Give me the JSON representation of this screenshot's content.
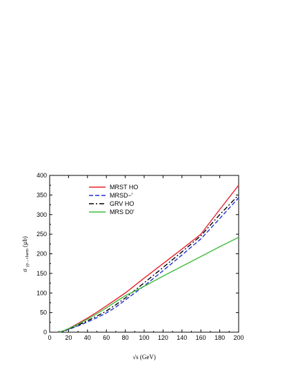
{
  "chart_data": {
    "type": "line",
    "xlabel": "√s (GeV)",
    "ylabel": "σγp→c c̄bar (µb)",
    "ylabel_main": "σ",
    "ylabel_sub": "γp→charm",
    "ylabel_unit": " (µb)",
    "xlim": [
      0,
      200
    ],
    "ylim": [
      0,
      400
    ],
    "xticks": [
      0,
      20,
      40,
      60,
      80,
      100,
      120,
      140,
      160,
      180,
      200
    ],
    "yticks": [
      0,
      50,
      100,
      150,
      200,
      250,
      300,
      350,
      400
    ],
    "legend_position": "top-left",
    "grid": false,
    "series": [
      {
        "name": "MRST HO",
        "color": "#e8202a",
        "dash": "solid",
        "x": [
          10,
          15,
          20,
          30,
          40,
          50,
          60,
          80,
          100,
          120,
          140,
          160,
          180,
          200
        ],
        "y": [
          0,
          4,
          9,
          22,
          36,
          51,
          67,
          100,
          138,
          175,
          212,
          250,
          313,
          375
        ]
      },
      {
        "name": "MRSD−'",
        "color": "#1f2fd6",
        "dash": "dashed",
        "x": [
          10,
          15,
          20,
          30,
          40,
          50,
          60,
          70,
          80,
          100,
          120,
          140,
          160,
          180,
          200
        ],
        "y": [
          0,
          3,
          7,
          16,
          26,
          37,
          49,
          64,
          82,
          118,
          157,
          197,
          238,
          290,
          343
        ]
      },
      {
        "name": "GRV HO",
        "color": "#000000",
        "dash": "dashdot",
        "x": [
          10,
          15,
          20,
          30,
          40,
          50,
          60,
          70,
          80,
          100,
          120,
          140,
          160,
          180,
          200
        ],
        "y": [
          0,
          3,
          8,
          18,
          29,
          41,
          54,
          70,
          87,
          126,
          165,
          205,
          246,
          300,
          350
        ]
      },
      {
        "name": "MRS D0'",
        "color": "#3dbb3a",
        "dash": "solid",
        "x": [
          10,
          15,
          20,
          30,
          40,
          50,
          60,
          70,
          80,
          100,
          120,
          140,
          160,
          180,
          200
        ],
        "y": [
          0,
          4,
          9,
          20,
          33,
          47,
          62,
          78,
          93,
          117,
          143,
          168,
          193,
          218,
          242
        ]
      }
    ]
  }
}
